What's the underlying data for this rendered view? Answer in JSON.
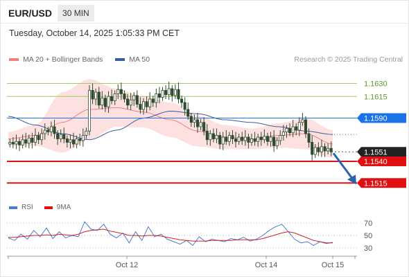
{
  "header": {
    "symbol": "EUR/USD",
    "timeframe": "30 MIN",
    "datetime": "Tuesday, October 14, 2025 1:05:33 PM CET"
  },
  "legend": {
    "bb_label": "MA 20 + Bollinger Bands",
    "ma50_label": "MA 50",
    "credit": "Research © 2025 Trading Central"
  },
  "rsi_legend": {
    "rsi_label": "RSI",
    "ma_label": "9MA"
  },
  "colors": {
    "bb_band": "#fde0e0",
    "bb_line": "#f08080",
    "ma50": "#3a5ba0",
    "resistance": "#9ccc65",
    "pivot": "#1a73e8",
    "support": "#e01010",
    "current": "#222222",
    "arrow": "#2a63b0",
    "candle": "#2e4a2e",
    "rsi": "#4a7bd0",
    "rsi_ma": "#d02020"
  },
  "chart_data": [
    {
      "type": "candlestick",
      "title": "EUR/USD 30 MIN",
      "ylim": [
        1.1504,
        1.1648
      ],
      "x_labels": [
        "Oct 12",
        "Oct 14",
        "Oct 15"
      ],
      "levels": [
        {
          "value": 1.163,
          "label": "1.1630",
          "kind": "resistance"
        },
        {
          "value": 1.1615,
          "label": "1.1615",
          "kind": "resistance"
        },
        {
          "value": 1.159,
          "label": "1.1590",
          "kind": "pivot"
        },
        {
          "value": 1.1551,
          "label": "1.1551",
          "kind": "current"
        },
        {
          "value": 1.154,
          "label": "1.1540",
          "kind": "support"
        },
        {
          "value": 1.1515,
          "label": "1.1515",
          "kind": "support"
        }
      ],
      "close_path": [
        1.1562,
        1.156,
        1.1563,
        1.1559,
        1.1565,
        1.1561,
        1.1567,
        1.1562,
        1.157,
        1.1565,
        1.1572,
        1.1576,
        1.1574,
        1.158,
        1.1572,
        1.1566,
        1.1571,
        1.1566,
        1.1562,
        1.1565,
        1.156,
        1.1566,
        1.1564,
        1.157,
        1.1575,
        1.1622,
        1.1612,
        1.162,
        1.1605,
        1.1613,
        1.1603,
        1.1615,
        1.161,
        1.1618,
        1.1623,
        1.1618,
        1.1612,
        1.1605,
        1.1611,
        1.1616,
        1.1606,
        1.16,
        1.1609,
        1.1603,
        1.1612,
        1.1608,
        1.1618,
        1.1614,
        1.1622,
        1.1617,
        1.1624,
        1.1616,
        1.1623,
        1.1612,
        1.1608,
        1.16,
        1.1592,
        1.1585,
        1.1588,
        1.158,
        1.1585,
        1.1575,
        1.1565,
        1.1572,
        1.1566,
        1.157,
        1.156,
        1.1568,
        1.1563,
        1.157,
        1.1566,
        1.1563,
        1.1568,
        1.1564,
        1.1568,
        1.1562,
        1.1566,
        1.1563,
        1.1568,
        1.1565,
        1.1569,
        1.1563,
        1.1568,
        1.1558,
        1.1564,
        1.157,
        1.1574,
        1.1578,
        1.1573,
        1.158,
        1.1576,
        1.1585,
        1.1588,
        1.1572,
        1.1562,
        1.1548,
        1.1556,
        1.1551,
        1.1557,
        1.1552,
        1.1555,
        1.1551
      ],
      "bb_mid": [
        1.1566,
        1.157,
        1.1585,
        1.16,
        1.1602,
        1.1597,
        1.1588,
        1.1575,
        1.1568,
        1.1566,
        1.157,
        1.1572,
        1.156
      ],
      "bb_width": [
        0.0008,
        0.0012,
        0.0035,
        0.0035,
        0.0022,
        0.0018,
        0.002,
        0.0018,
        0.0014,
        0.0012,
        0.0014,
        0.0018,
        0.0016
      ],
      "ma50": [
        1.1592,
        1.1582,
        1.1572,
        1.1565,
        1.1576,
        1.159,
        1.1598,
        1.1595,
        1.1588,
        1.1585,
        1.158,
        1.1575,
        1.1571
      ],
      "forecast": {
        "from": 1.1551,
        "to": 1.1515
      }
    },
    {
      "type": "line",
      "title": "RSI",
      "ylim": [
        20,
        80
      ],
      "yticks": [
        "70",
        "50",
        "30"
      ],
      "series": [
        {
          "name": "RSI",
          "values": [
            46,
            42,
            52,
            44,
            58,
            48,
            62,
            45,
            56,
            46,
            50,
            48,
            72,
            60,
            58,
            68,
            52,
            46,
            54,
            38,
            56,
            42,
            64,
            48,
            52,
            44,
            40,
            36,
            42,
            34,
            48,
            40,
            44,
            42,
            40,
            45,
            43,
            47,
            41,
            44,
            50,
            58,
            64,
            68,
            56,
            44,
            38,
            40,
            34,
            40,
            37,
            39
          ]
        },
        {
          "name": "9MA",
          "values": [
            47,
            47,
            48,
            49,
            50,
            50,
            51,
            50,
            52,
            51,
            50,
            52,
            56,
            58,
            59,
            60,
            57,
            55,
            53,
            50,
            50,
            49,
            50,
            50,
            49,
            47,
            45,
            43,
            42,
            41,
            41,
            41,
            42,
            42,
            42,
            42,
            43,
            43,
            43,
            43,
            45,
            48,
            51,
            54,
            56,
            54,
            50,
            46,
            42,
            40,
            38,
            38
          ]
        }
      ]
    }
  ]
}
